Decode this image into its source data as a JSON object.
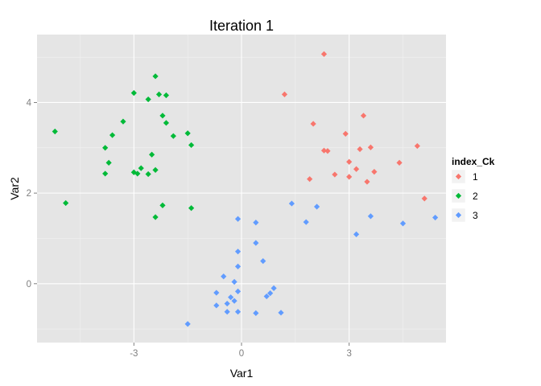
{
  "chart_data": {
    "type": "scatter",
    "title": "Iteration 1",
    "xlabel": "Var1",
    "ylabel": "Var2",
    "xlim": [
      -5.7,
      5.7
    ],
    "ylim": [
      -1.3,
      5.5
    ],
    "x_ticks": [
      -3,
      0,
      3
    ],
    "y_ticks": [
      0,
      2,
      4
    ],
    "x_tick_labels": [
      "-3",
      "0",
      "3"
    ],
    "y_tick_labels": [
      "0",
      "2",
      "4"
    ],
    "grid": true,
    "legend": {
      "title": "index_Ck",
      "position": "right"
    },
    "series": [
      {
        "name": "1",
        "color": "#F8766D",
        "points": [
          [
            2.3,
            5.07
          ],
          [
            1.2,
            4.18
          ],
          [
            3.4,
            3.71
          ],
          [
            2.0,
            3.53
          ],
          [
            2.9,
            3.31
          ],
          [
            4.9,
            3.04
          ],
          [
            3.6,
            3.01
          ],
          [
            3.3,
            2.97
          ],
          [
            2.3,
            2.94
          ],
          [
            2.4,
            2.93
          ],
          [
            3.0,
            2.69
          ],
          [
            4.4,
            2.67
          ],
          [
            3.2,
            2.53
          ],
          [
            3.7,
            2.47
          ],
          [
            2.6,
            2.41
          ],
          [
            3.0,
            2.36
          ],
          [
            1.9,
            2.31
          ],
          [
            3.5,
            2.25
          ],
          [
            5.1,
            1.88
          ]
        ]
      },
      {
        "name": "2",
        "color": "#00BA38",
        "points": [
          [
            -2.4,
            4.58
          ],
          [
            -3.0,
            4.21
          ],
          [
            -2.3,
            4.18
          ],
          [
            -2.1,
            4.16
          ],
          [
            -2.6,
            4.07
          ],
          [
            -2.2,
            3.71
          ],
          [
            -3.3,
            3.58
          ],
          [
            -2.1,
            3.55
          ],
          [
            -5.2,
            3.36
          ],
          [
            -1.5,
            3.32
          ],
          [
            -3.6,
            3.28
          ],
          [
            -1.9,
            3.26
          ],
          [
            -1.4,
            3.06
          ],
          [
            -3.8,
            3.0
          ],
          [
            -2.5,
            2.85
          ],
          [
            -3.7,
            2.67
          ],
          [
            -2.8,
            2.55
          ],
          [
            -2.4,
            2.51
          ],
          [
            -3.0,
            2.46
          ],
          [
            -2.9,
            2.43
          ],
          [
            -3.8,
            2.43
          ],
          [
            -2.6,
            2.42
          ],
          [
            -4.9,
            1.78
          ],
          [
            -2.2,
            1.73
          ],
          [
            -1.4,
            1.67
          ],
          [
            -2.4,
            1.47
          ]
        ]
      },
      {
        "name": "3",
        "color": "#619CFF",
        "points": [
          [
            -0.1,
            1.43
          ],
          [
            0.4,
            1.35
          ],
          [
            1.4,
            1.77
          ],
          [
            2.1,
            1.7
          ],
          [
            1.8,
            1.36
          ],
          [
            3.6,
            1.49
          ],
          [
            5.4,
            1.46
          ],
          [
            4.5,
            1.33
          ],
          [
            3.2,
            1.09
          ],
          [
            0.4,
            0.9
          ],
          [
            -0.1,
            0.71
          ],
          [
            0.6,
            0.5
          ],
          [
            -0.1,
            0.38
          ],
          [
            -0.7,
            -0.2
          ],
          [
            -0.5,
            0.16
          ],
          [
            -0.2,
            0.04
          ],
          [
            0.9,
            -0.1
          ],
          [
            -0.1,
            -0.17
          ],
          [
            0.8,
            -0.21
          ],
          [
            0.7,
            -0.28
          ],
          [
            -0.3,
            -0.3
          ],
          [
            -0.2,
            -0.38
          ],
          [
            -0.4,
            -0.44
          ],
          [
            -0.7,
            -0.48
          ],
          [
            -0.4,
            -0.62
          ],
          [
            -0.1,
            -0.62
          ],
          [
            0.4,
            -0.65
          ],
          [
            1.1,
            -0.64
          ],
          [
            -1.5,
            -0.89
          ]
        ]
      }
    ]
  }
}
